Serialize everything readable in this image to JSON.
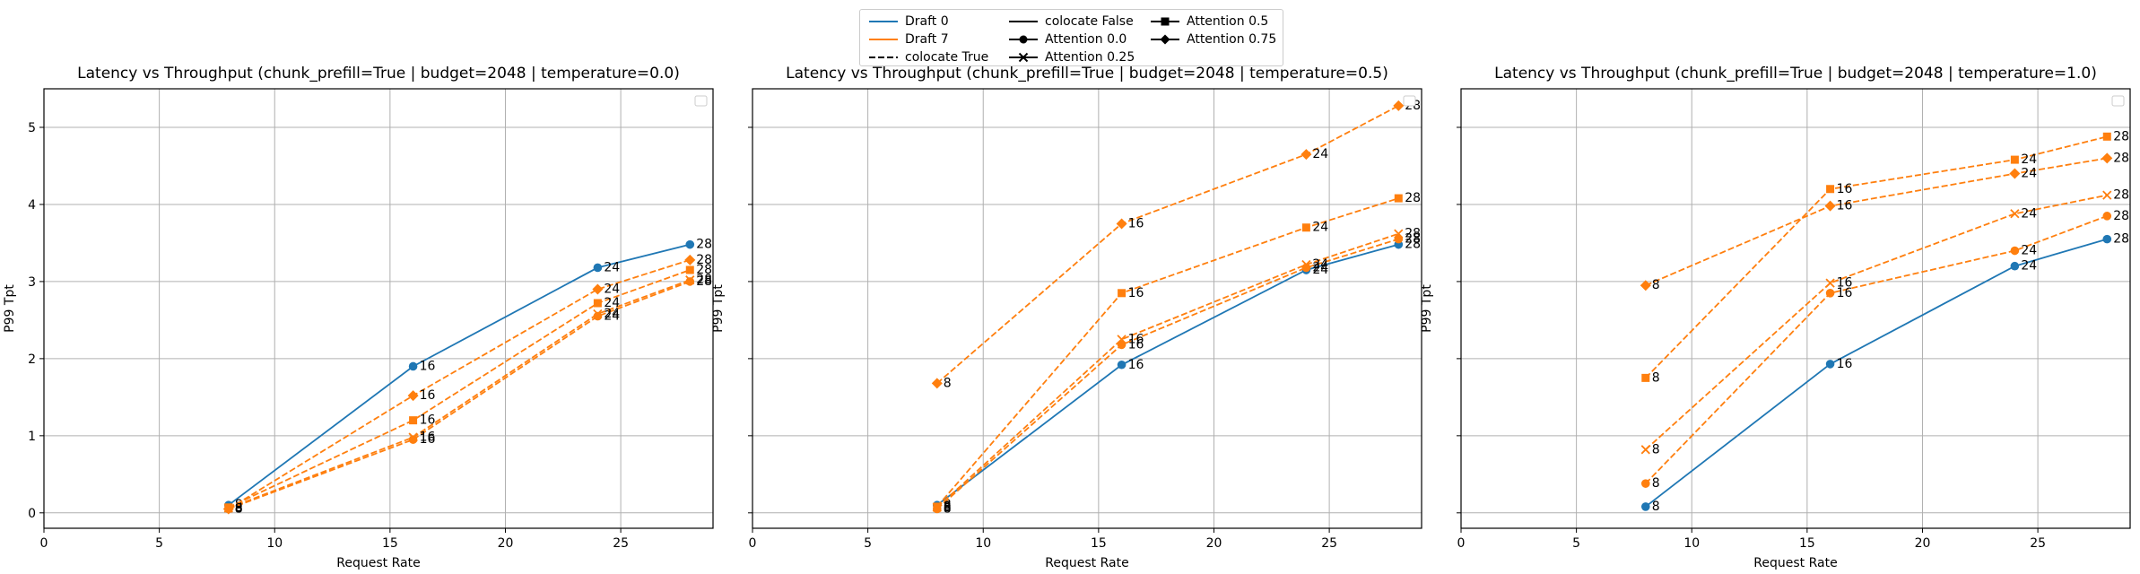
{
  "legend": {
    "items": [
      {
        "label": "Draft 0",
        "color": "#1f77b4",
        "dash": "solid",
        "marker": "none"
      },
      {
        "label": "Draft 7",
        "color": "#ff7f0e",
        "dash": "solid",
        "marker": "none"
      },
      {
        "label": "colocate True",
        "color": "#000000",
        "dash": "dashed",
        "marker": "none"
      },
      {
        "label": "colocate False",
        "color": "#000000",
        "dash": "solid",
        "marker": "none"
      },
      {
        "label": "Attention 0.0",
        "color": "#000000",
        "dash": "solid",
        "marker": "circle"
      },
      {
        "label": "Attention 0.25",
        "color": "#000000",
        "dash": "solid",
        "marker": "x"
      },
      {
        "label": "Attention 0.5",
        "color": "#000000",
        "dash": "solid",
        "marker": "square"
      },
      {
        "label": "Attention 0.75",
        "color": "#000000",
        "dash": "solid",
        "marker": "diamond"
      }
    ]
  },
  "chart_data": [
    {
      "type": "line",
      "title": "Latency vs Throughput (chunk_prefill=True | budget=2048 | temperature=0.0)",
      "xlabel": "Request Rate",
      "ylabel": "P99 Tpt",
      "xlim": [
        0,
        29
      ],
      "ylim": [
        -0.2,
        5.5
      ],
      "xticks": [
        0,
        5,
        10,
        15,
        20,
        25
      ],
      "yticks": [
        0,
        1,
        2,
        3,
        4,
        5
      ],
      "grid": true,
      "series": [
        {
          "draft": "Draft 0",
          "colocate": "False",
          "marker": "circle",
          "color": "#1f77b4",
          "dash": "solid",
          "x": [
            8,
            16,
            24,
            28
          ],
          "y": [
            0.1,
            1.9,
            3.18,
            3.48
          ],
          "labels": [
            "8",
            "16",
            "24",
            "28"
          ]
        },
        {
          "draft": "Draft 7",
          "colocate": "True",
          "marker": "circle",
          "color": "#ff7f0e",
          "dash": "dashed",
          "x": [
            8,
            16,
            24,
            28
          ],
          "y": [
            0.05,
            0.95,
            2.55,
            3.0
          ],
          "labels": [
            "8",
            "16",
            "24",
            "28"
          ]
        },
        {
          "draft": "Draft 7",
          "colocate": "True",
          "marker": "x",
          "color": "#ff7f0e",
          "dash": "dashed",
          "x": [
            8,
            16,
            24,
            28
          ],
          "y": [
            0.06,
            0.98,
            2.58,
            3.02
          ],
          "labels": [
            "8",
            "16",
            "24",
            "28"
          ]
        },
        {
          "draft": "Draft 7",
          "colocate": "True",
          "marker": "square",
          "color": "#ff7f0e",
          "dash": "dashed",
          "x": [
            8,
            16,
            24,
            28
          ],
          "y": [
            0.07,
            1.2,
            2.72,
            3.15
          ],
          "labels": [
            "8",
            "16",
            "24",
            "28"
          ]
        },
        {
          "draft": "Draft 7",
          "colocate": "True",
          "marker": "diamond",
          "color": "#ff7f0e",
          "dash": "dashed",
          "x": [
            8,
            16,
            24,
            28
          ],
          "y": [
            0.05,
            1.52,
            2.9,
            3.28
          ],
          "labels": [
            "8",
            "16",
            "24",
            "28"
          ]
        }
      ]
    },
    {
      "type": "line",
      "title": "Latency vs Throughput (chunk_prefill=True | budget=2048 | temperature=0.5)",
      "xlabel": "Request Rate",
      "ylabel": "P99 Tpt",
      "xlim": [
        0,
        29
      ],
      "ylim": [
        -0.2,
        5.5
      ],
      "xticks": [
        0,
        5,
        10,
        15,
        20,
        25
      ],
      "yticks": [
        0,
        1,
        2,
        3,
        4,
        5
      ],
      "grid": true,
      "series": [
        {
          "draft": "Draft 0",
          "colocate": "False",
          "marker": "circle",
          "color": "#1f77b4",
          "dash": "solid",
          "x": [
            8,
            16,
            24,
            28
          ],
          "y": [
            0.1,
            1.92,
            3.15,
            3.48
          ],
          "labels": [
            "8",
            "16",
            "24",
            "28"
          ]
        },
        {
          "draft": "Draft 7",
          "colocate": "True",
          "marker": "circle",
          "color": "#ff7f0e",
          "dash": "dashed",
          "x": [
            8,
            16,
            24,
            28
          ],
          "y": [
            0.05,
            2.18,
            3.18,
            3.55
          ],
          "labels": [
            "8",
            "16",
            "24",
            "28"
          ]
        },
        {
          "draft": "Draft 7",
          "colocate": "True",
          "marker": "x",
          "color": "#ff7f0e",
          "dash": "dashed",
          "x": [
            8,
            16,
            24,
            28
          ],
          "y": [
            0.07,
            2.25,
            3.22,
            3.62
          ],
          "labels": [
            "8",
            "16",
            "24",
            "28"
          ]
        },
        {
          "draft": "Draft 7",
          "colocate": "True",
          "marker": "square",
          "color": "#ff7f0e",
          "dash": "dashed",
          "x": [
            8,
            16,
            24,
            28
          ],
          "y": [
            0.08,
            2.85,
            3.7,
            4.08
          ],
          "labels": [
            "8",
            "16",
            "24",
            "28"
          ]
        },
        {
          "draft": "Draft 7",
          "colocate": "True",
          "marker": "diamond",
          "color": "#ff7f0e",
          "dash": "dashed",
          "x": [
            8,
            16,
            24,
            28
          ],
          "y": [
            1.68,
            3.75,
            4.65,
            5.28
          ],
          "labels": [
            "8",
            "16",
            "24",
            "28"
          ]
        }
      ]
    },
    {
      "type": "line",
      "title": "Latency vs Throughput (chunk_prefill=True | budget=2048 | temperature=1.0)",
      "xlabel": "Request Rate",
      "ylabel": "P99 Tpt",
      "xlim": [
        0,
        29
      ],
      "ylim": [
        -0.2,
        5.5
      ],
      "xticks": [
        0,
        5,
        10,
        15,
        20,
        25
      ],
      "yticks": [
        0,
        1,
        2,
        3,
        4,
        5
      ],
      "grid": true,
      "series": [
        {
          "draft": "Draft 0",
          "colocate": "False",
          "marker": "circle",
          "color": "#1f77b4",
          "dash": "solid",
          "x": [
            8,
            16,
            24,
            28
          ],
          "y": [
            0.08,
            1.93,
            3.2,
            3.55
          ],
          "labels": [
            "8",
            "16",
            "24",
            "28"
          ]
        },
        {
          "draft": "Draft 7",
          "colocate": "True",
          "marker": "circle",
          "color": "#ff7f0e",
          "dash": "dashed",
          "x": [
            8,
            16,
            24,
            28
          ],
          "y": [
            0.38,
            2.85,
            3.4,
            3.85
          ],
          "labels": [
            "8",
            "16",
            "24",
            "28"
          ]
        },
        {
          "draft": "Draft 7",
          "colocate": "True",
          "marker": "x",
          "color": "#ff7f0e",
          "dash": "dashed",
          "x": [
            8,
            16,
            24,
            28
          ],
          "y": [
            0.82,
            2.98,
            3.88,
            4.12
          ],
          "labels": [
            "8",
            "16",
            "24",
            "28"
          ]
        },
        {
          "draft": "Draft 7",
          "colocate": "True",
          "marker": "square",
          "color": "#ff7f0e",
          "dash": "dashed",
          "x": [
            8,
            16,
            24,
            28
          ],
          "y": [
            1.75,
            4.2,
            4.58,
            4.88
          ],
          "labels": [
            "8",
            "16",
            "24",
            "28"
          ]
        },
        {
          "draft": "Draft 7",
          "colocate": "True",
          "marker": "diamond",
          "color": "#ff7f0e",
          "dash": "dashed",
          "x": [
            8,
            16,
            24,
            28
          ],
          "y": [
            2.95,
            3.98,
            4.4,
            4.6
          ],
          "labels": [
            "8",
            "16",
            "24",
            "28"
          ]
        }
      ]
    }
  ]
}
